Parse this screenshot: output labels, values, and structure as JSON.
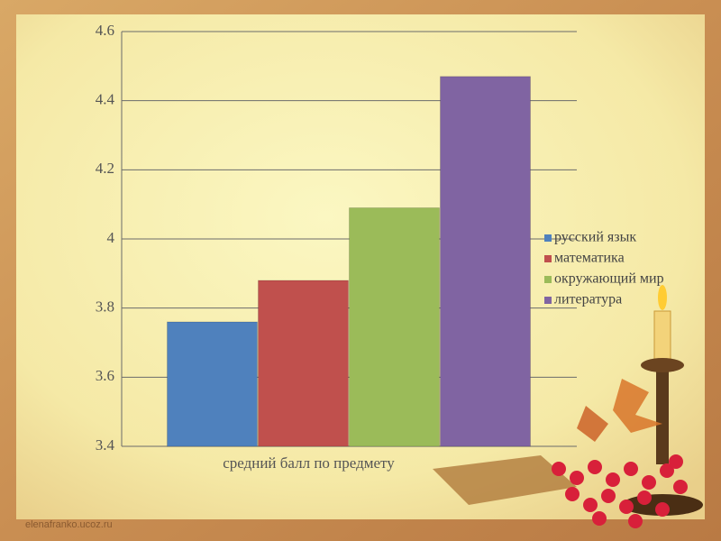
{
  "chart_data": {
    "type": "bar",
    "categories": [
      "средний балл по предмету"
    ],
    "series": [
      {
        "name": "русский язык",
        "color": "#4f81bd",
        "values": [
          3.76
        ]
      },
      {
        "name": "математика",
        "color": "#c0504d",
        "values": [
          3.88
        ]
      },
      {
        "name": "окружающий мир",
        "color": "#9bbb59",
        "values": [
          4.09
        ]
      },
      {
        "name": "литература",
        "color": "#8064a2",
        "values": [
          4.47
        ]
      }
    ],
    "ylim": [
      3.4,
      4.6
    ],
    "yticks": [
      3.4,
      3.6,
      3.8,
      4,
      4.2,
      4.4,
      4.6
    ],
    "grid": true,
    "legend": "right"
  },
  "watermark": "elenafranko.ucoz.ru"
}
